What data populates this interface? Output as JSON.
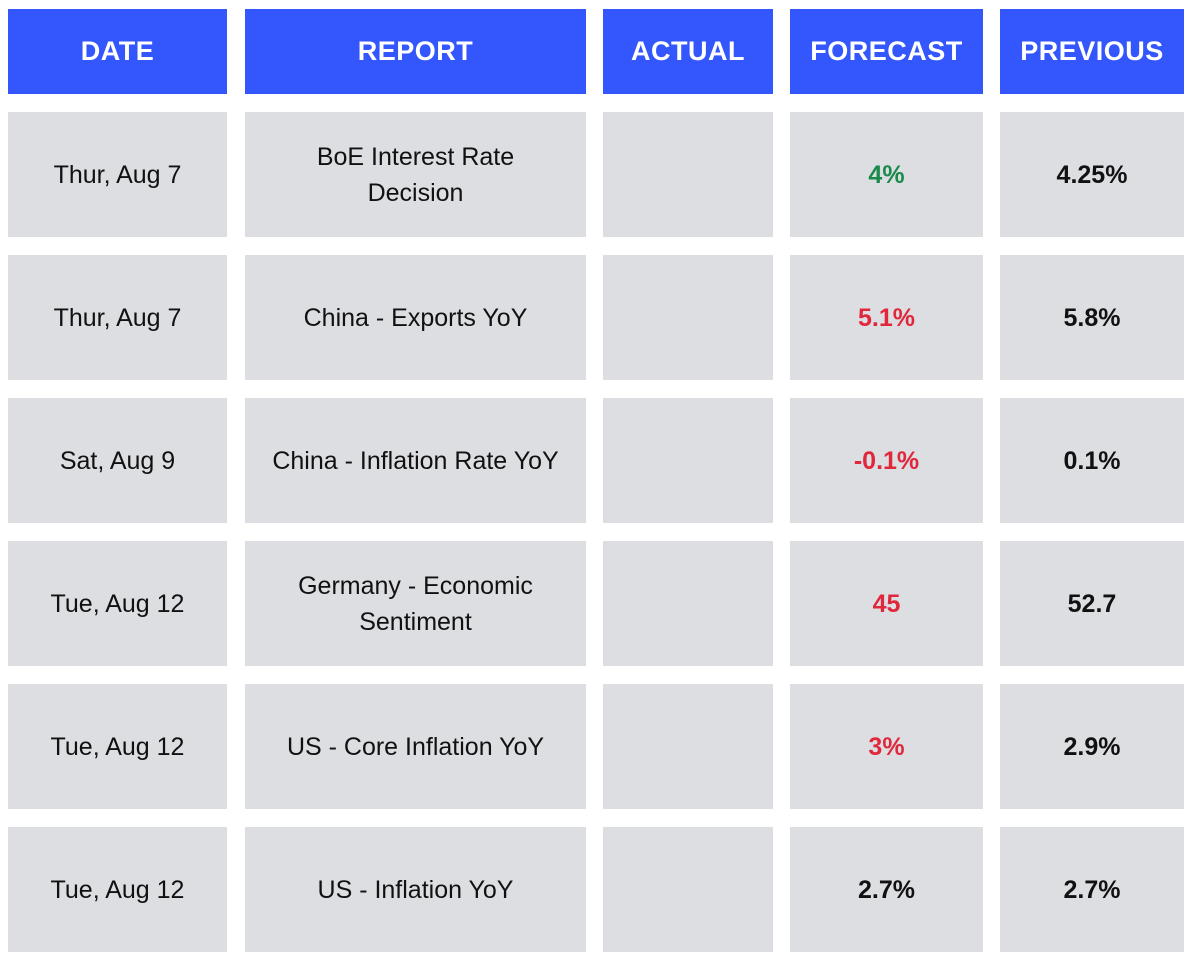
{
  "headers": {
    "date": "DATE",
    "report": "REPORT",
    "actual": "ACTUAL",
    "forecast": "FORECAST",
    "previous": "PREVIOUS"
  },
  "colors": {
    "header_bg": "#3457fd",
    "cell_bg": "#dddee2",
    "positive": "#1a8a4a",
    "negative": "#e0283c",
    "neutral": "#111111"
  },
  "rows": [
    {
      "date": "Thur, Aug 7",
      "report": "BoE Interest Rate Decision",
      "actual": "",
      "forecast": "4%",
      "forecast_tone": "positive",
      "previous": "4.25%"
    },
    {
      "date": "Thur, Aug 7",
      "report": "China - Exports YoY",
      "actual": "",
      "forecast": "5.1%",
      "forecast_tone": "negative",
      "previous": "5.8%"
    },
    {
      "date": "Sat, Aug 9",
      "report": "China - Inflation Rate YoY",
      "actual": "",
      "forecast": "-0.1%",
      "forecast_tone": "negative",
      "previous": "0.1%"
    },
    {
      "date": "Tue, Aug 12",
      "report": "Germany - Economic Sentiment",
      "actual": "",
      "forecast": "45",
      "forecast_tone": "negative",
      "previous": "52.7"
    },
    {
      "date": "Tue, Aug 12",
      "report": "US - Core Inflation YoY",
      "actual": "",
      "forecast": "3%",
      "forecast_tone": "negative",
      "previous": "2.9%"
    },
    {
      "date": "Tue, Aug 12",
      "report": "US - Inflation YoY",
      "actual": "",
      "forecast": "2.7%",
      "forecast_tone": "neutral",
      "previous": "2.7%"
    }
  ]
}
